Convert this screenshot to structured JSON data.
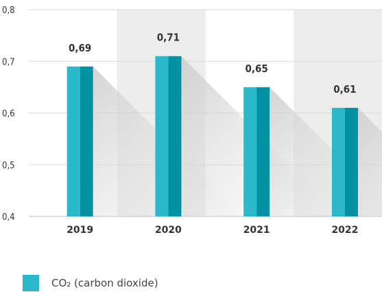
{
  "chart_data": {
    "type": "bar",
    "categories": [
      "2019",
      "2020",
      "2021",
      "2022"
    ],
    "series": [
      {
        "name": "CO₂ (carbon dioxide)",
        "values": [
          0.69,
          0.71,
          0.65,
          0.61
        ]
      }
    ],
    "data_labels": [
      "0,69",
      "0,71",
      "0,65",
      "0,61"
    ],
    "y_ticks": [
      "0,4",
      "0,5",
      "0,6",
      "0,7",
      "0,8"
    ],
    "ylim": [
      0.4,
      0.8
    ],
    "title": "",
    "xlabel": "",
    "ylabel": "",
    "grid": true,
    "legend_position": "bottom-left",
    "colors": {
      "bar_light": "#29b9cb",
      "bar_dark": "#0092a2",
      "band_alt": "#ededed",
      "grid": "#d9d9d9",
      "shadow": "#dcdcdc"
    }
  },
  "legend": {
    "label": "CO₂ (carbon dioxide)",
    "color": "#29b9cb"
  }
}
